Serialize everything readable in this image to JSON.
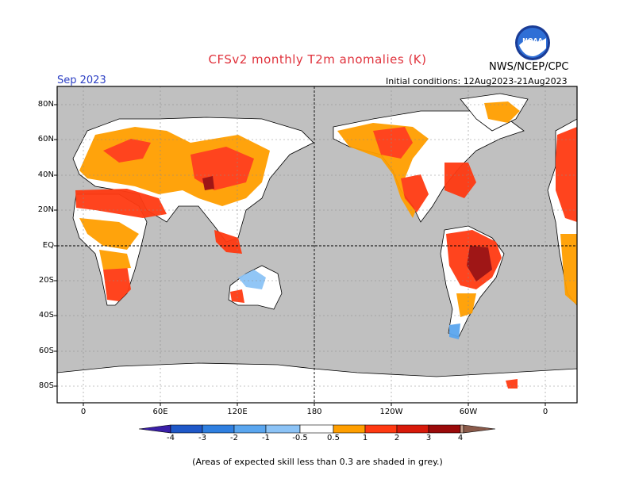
{
  "title": "CFSv2 monthly T2m anomalies (K)",
  "agency": "NWS/NCEP/CPC",
  "logo_text": "NOAA",
  "month": "Sep 2023",
  "initial_conditions": "Initial conditions: 12Aug2023-21Aug2023",
  "lat_labels": [
    "80N",
    "60N",
    "40N",
    "20N",
    "EQ",
    "20S",
    "40S",
    "60S",
    "80S"
  ],
  "lon_labels": [
    "0",
    "60E",
    "120E",
    "180",
    "120W",
    "60W",
    "0"
  ],
  "colorbar": {
    "labels": [
      "-4",
      "-3",
      "-2",
      "-1",
      "-0.5",
      "0.5",
      "1",
      "2",
      "3",
      "4"
    ],
    "colors": [
      "#3a1fa8",
      "#1f58c8",
      "#2f7fe0",
      "#5aa6ef",
      "#8cc3f6",
      "#ffffff",
      "#ff9f00",
      "#ff3a12",
      "#d81a0a",
      "#9a0a0a",
      "#c8a08c",
      "#8a5a4a"
    ]
  },
  "skill_note": "(Areas of expected skill less than 0.3 are shaded in grey.)",
  "map_colors": {
    "ocean_grey": "#c0c0c0",
    "neutral": "#ffffff"
  }
}
